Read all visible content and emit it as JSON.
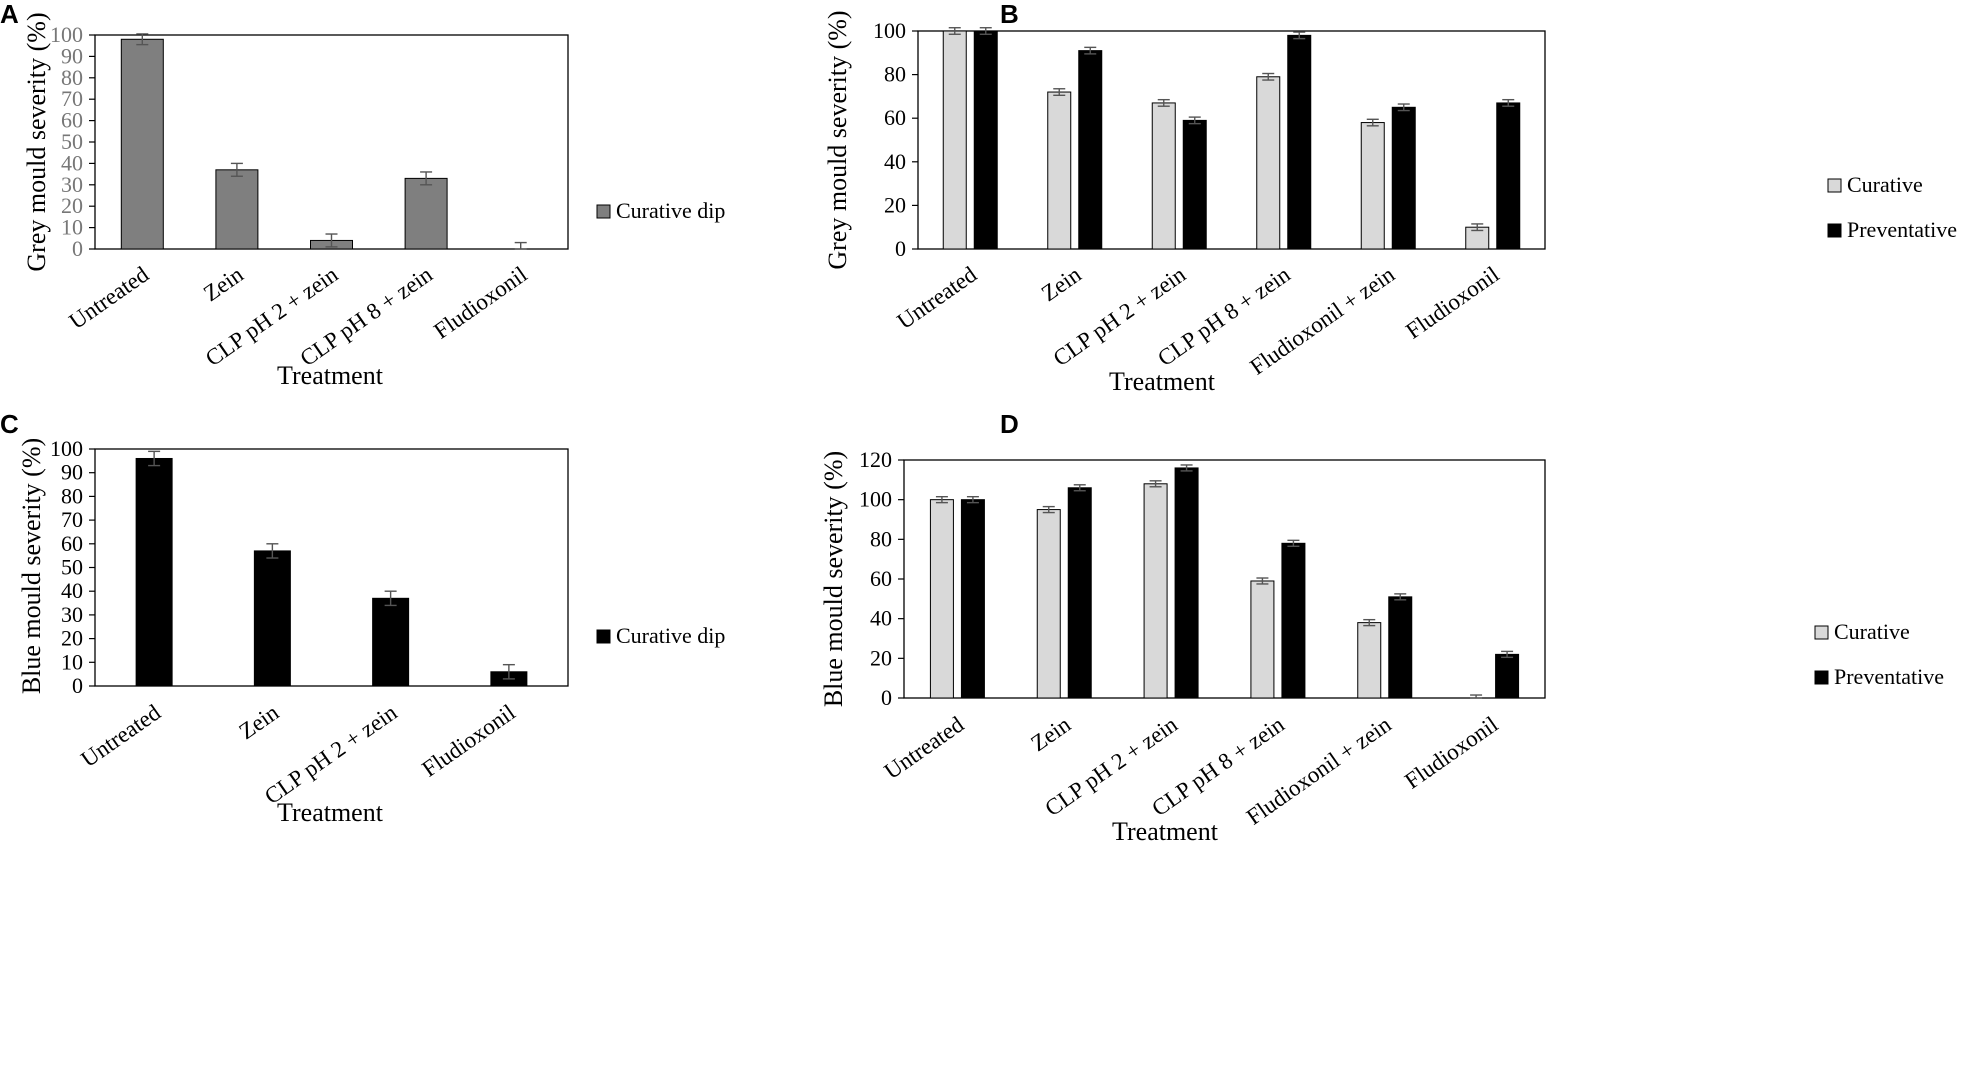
{
  "figure": {
    "colors": {
      "axis": "#000000",
      "tick_label": "#000000",
      "tick_label_gray": "#777777",
      "error_bar": "#555555"
    }
  },
  "chart_data": [
    {
      "panel": "A",
      "type": "bar",
      "title": "",
      "xlabel": "Treatment",
      "ylabel": "Grey mould severity (%)",
      "categories": [
        "Untreated",
        "Zein",
        "CLP pH 2 + zein",
        "CLP pH 8 + zein",
        "Fludioxonil"
      ],
      "series": [
        {
          "name": "Curative dip",
          "color": "#7f7f7f",
          "values": [
            98,
            37,
            4,
            33,
            0
          ],
          "errors": [
            2.5,
            3,
            3,
            3,
            3
          ]
        }
      ],
      "ylim": [
        0,
        100
      ],
      "yticks": [
        0,
        10,
        20,
        30,
        40,
        50,
        60,
        70,
        80,
        90,
        100
      ],
      "grid": false,
      "legend_position": "right"
    },
    {
      "panel": "B",
      "type": "bar",
      "title": "",
      "xlabel": "Treatment",
      "ylabel": "Grey mould severity (%)",
      "categories": [
        "Untreated",
        "Zein",
        "CLP pH 2 + zein",
        "CLP pH 8 + zein",
        "Fludioxonil + zein",
        "Fludioxonil"
      ],
      "series": [
        {
          "name": "Curative",
          "color": "#d9d9d9",
          "values": [
            100,
            72,
            67,
            79,
            58,
            10
          ],
          "errors": [
            1.5,
            1.5,
            1.5,
            1.5,
            1.5,
            1.5
          ]
        },
        {
          "name": "Preventative",
          "color": "#000000",
          "values": [
            100,
            91,
            59,
            98,
            65,
            67
          ],
          "errors": [
            1.5,
            1.5,
            1.5,
            1.5,
            1.5,
            1.5
          ]
        }
      ],
      "ylim": [
        0,
        100
      ],
      "yticks": [
        0,
        20,
        40,
        60,
        80,
        100
      ],
      "grid": false,
      "legend_position": "right"
    },
    {
      "panel": "C",
      "type": "bar",
      "title": "",
      "xlabel": "Treatment",
      "ylabel": "Blue mould severity (%)",
      "categories": [
        "Untreated",
        "Zein",
        "CLP pH 2 + zein",
        "Fludioxonil"
      ],
      "series": [
        {
          "name": "Curative dip",
          "color": "#000000",
          "values": [
            96,
            57,
            37,
            6
          ],
          "errors": [
            3,
            3,
            3,
            3
          ]
        }
      ],
      "ylim": [
        0,
        100
      ],
      "yticks": [
        0,
        10,
        20,
        30,
        40,
        50,
        60,
        70,
        80,
        90,
        100
      ],
      "grid": false,
      "legend_position": "right"
    },
    {
      "panel": "D",
      "type": "bar",
      "title": "",
      "xlabel": "Treatment",
      "ylabel": "Blue mould severity (%)",
      "categories": [
        "Untreated",
        "Zein",
        "CLP pH 2 + zein",
        "CLP pH 8 + zein",
        "Fludioxonil + zein",
        "Fludioxonil"
      ],
      "series": [
        {
          "name": "Curative",
          "color": "#d9d9d9",
          "values": [
            100,
            95,
            108,
            59,
            38,
            0
          ],
          "errors": [
            1.5,
            1.5,
            1.5,
            1.5,
            1.5,
            1.5
          ]
        },
        {
          "name": "Preventative",
          "color": "#000000",
          "values": [
            100,
            106,
            116,
            78,
            51,
            22
          ],
          "errors": [
            1.5,
            1.5,
            1.5,
            1.5,
            1.5,
            1.5
          ]
        }
      ],
      "ylim": [
        0,
        120
      ],
      "yticks": [
        0,
        20,
        40,
        60,
        80,
        100,
        120
      ],
      "grid": false,
      "legend_position": "right"
    }
  ]
}
